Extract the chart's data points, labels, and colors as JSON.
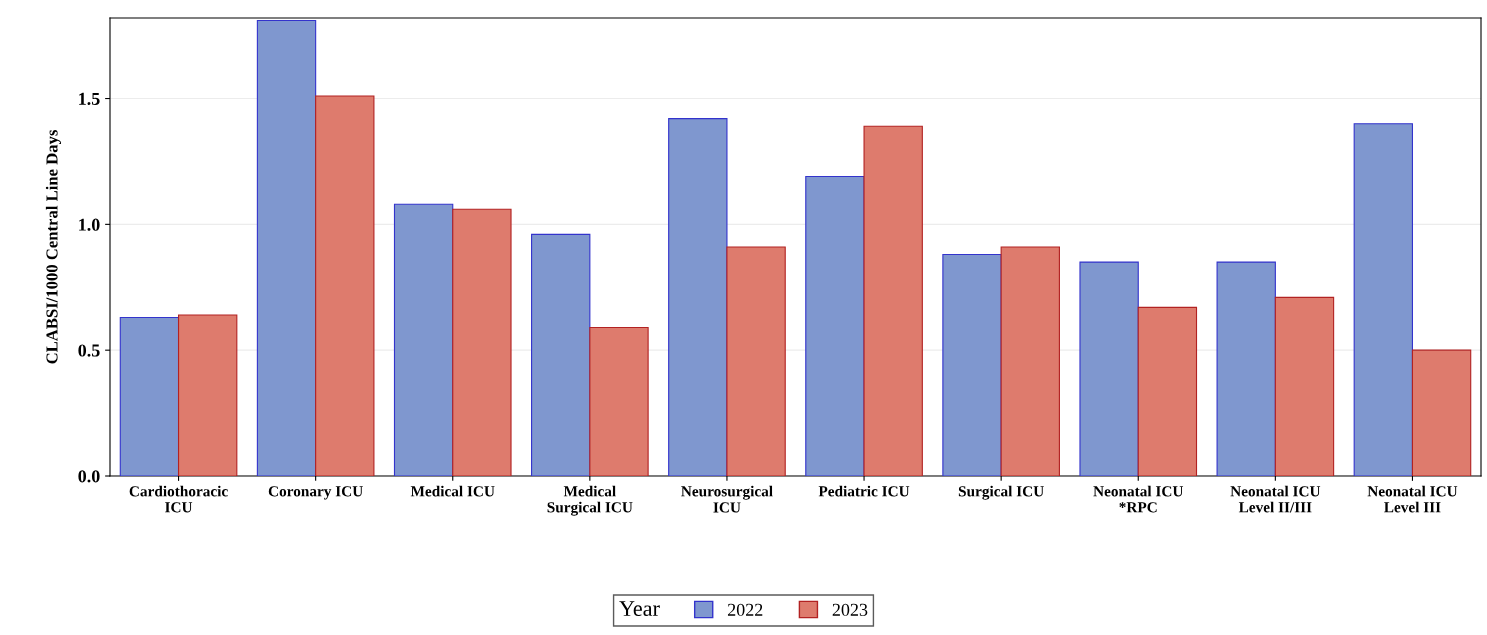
{
  "chart_data": {
    "type": "bar",
    "ylabel": "CLABSI/1000 Central Line Days",
    "legend_title": "Year",
    "categories": [
      "Cardiothoracic\nICU",
      "Coronary ICU",
      "Medical ICU",
      "Medical\nSurgical ICU",
      "Neurosurgical\nICU",
      "Pediatric ICU",
      "Surgical ICU",
      "Neonatal ICU\n*RPC",
      "Neonatal ICU\nLevel II/III",
      "Neonatal ICU\nLevel III"
    ],
    "series": [
      {
        "name": "2022",
        "color": "#7f97cf",
        "values": [
          0.63,
          1.81,
          1.08,
          0.96,
          1.42,
          1.19,
          0.88,
          0.85,
          0.85,
          1.4
        ]
      },
      {
        "name": "2023",
        "color": "#de7b6d",
        "values": [
          0.64,
          1.51,
          1.06,
          0.59,
          0.91,
          1.39,
          0.91,
          0.67,
          0.71,
          0.5
        ]
      }
    ],
    "ylim": [
      0,
      1.82
    ],
    "yticks": [
      {
        "value": 0,
        "label": "0.0"
      },
      {
        "value": 0.5,
        "label": "0.5"
      },
      {
        "value": 1,
        "label": "1.0"
      },
      {
        "value": 1.5,
        "label": "1.5"
      }
    ],
    "grid": "y",
    "legend": "bottom"
  }
}
